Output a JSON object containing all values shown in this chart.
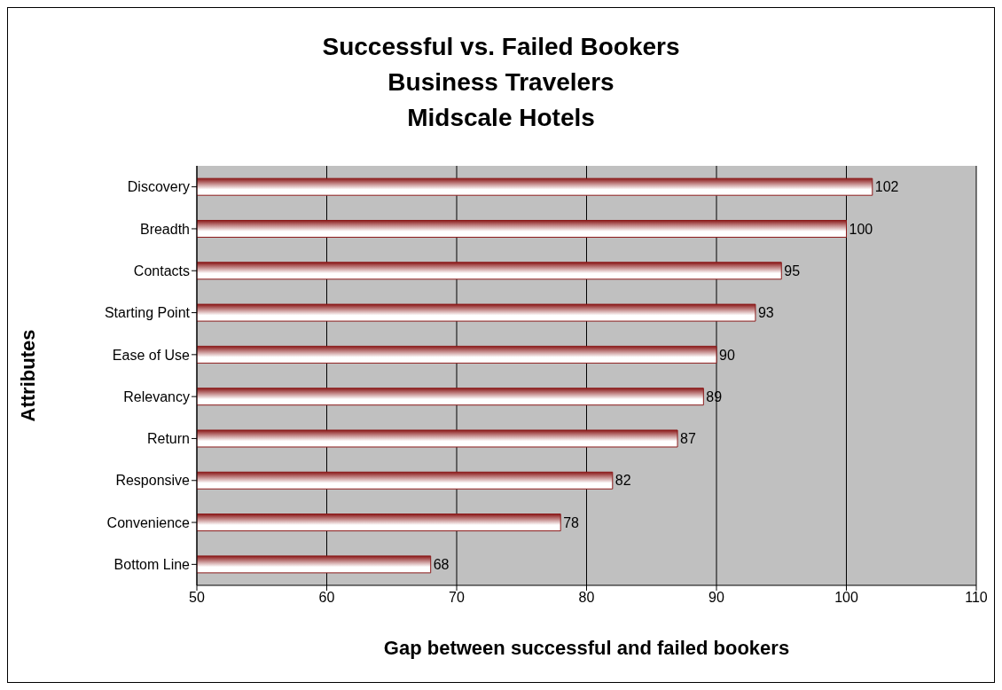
{
  "chart_data": {
    "type": "bar",
    "orientation": "horizontal",
    "title": "Successful vs. Failed Bookers\nBusiness Travelers\nMidscale Hotels",
    "xlabel": "Gap between successful and failed bookers",
    "ylabel": "Attributes",
    "categories": [
      "Discovery",
      "Breadth",
      "Contacts",
      "Starting Point",
      "Ease of Use",
      "Relevancy",
      "Return",
      "Responsive",
      "Convenience",
      "Bottom Line"
    ],
    "values": [
      102,
      100,
      95,
      93,
      90,
      89,
      87,
      82,
      78,
      68
    ],
    "color": "#8b1a1a",
    "xlim": [
      50,
      110
    ],
    "xticks": [
      50,
      60,
      70,
      80,
      90,
      100,
      110
    ],
    "grid": "x",
    "data_labels": true,
    "legend": false
  }
}
